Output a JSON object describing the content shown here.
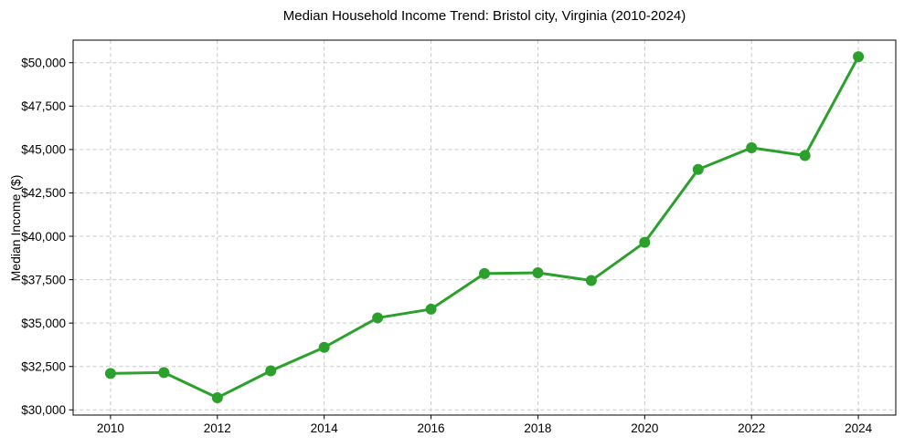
{
  "chart_data": {
    "type": "line",
    "title": "Median Household Income Trend: Bristol city, Virginia (2010-2024)",
    "xlabel": "",
    "ylabel": "Median Income ($)",
    "x": [
      2010,
      2011,
      2012,
      2013,
      2014,
      2015,
      2016,
      2017,
      2018,
      2019,
      2020,
      2021,
      2022,
      2023,
      2024
    ],
    "values": [
      32100,
      32150,
      30700,
      32250,
      33600,
      35300,
      35800,
      37850,
      37900,
      37450,
      39650,
      43850,
      45100,
      44650,
      50350
    ],
    "series_name": "Median Household Income",
    "xticks": [
      2010,
      2012,
      2014,
      2016,
      2018,
      2020,
      2022,
      2024
    ],
    "xtick_labels": [
      "2010",
      "2012",
      "2014",
      "2016",
      "2018",
      "2020",
      "2022",
      "2024"
    ],
    "yticks": [
      30000,
      32500,
      35000,
      37500,
      40000,
      42500,
      45000,
      47500,
      50000
    ],
    "ytick_labels": [
      "$30,000",
      "$32,500",
      "$35,000",
      "$37,500",
      "$40,000",
      "$42,500",
      "$45,000",
      "$47,500",
      "$50,000"
    ],
    "xlim": [
      2009.3,
      2024.7
    ],
    "ylim": [
      29700,
      51300
    ],
    "grid": true,
    "grid_style": "dashed",
    "legend": "none",
    "marker": "circle",
    "colors": {
      "line": "#2ca02c",
      "marker": "#2ca02c",
      "grid": "#c9c9c9",
      "axis": "#000000",
      "text": "#000000",
      "background": "#ffffff"
    }
  }
}
